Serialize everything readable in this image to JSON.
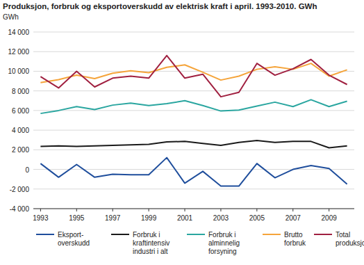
{
  "chart_data": {
    "type": "line",
    "title": "Produksjon, forbruk og eksportoverskudd av elektrisk kraft i april. 1993-2010. GWh",
    "y_label": "GWh",
    "x": [
      1993,
      1994,
      1995,
      1996,
      1997,
      1998,
      1999,
      2000,
      2001,
      2002,
      2003,
      2004,
      2005,
      2006,
      2007,
      2008,
      2009,
      2010
    ],
    "xlim": [
      1992.6,
      2010.4
    ],
    "xticks": [
      1993,
      1995,
      1997,
      1999,
      2001,
      2003,
      2005,
      2007,
      2009
    ],
    "ylim": [
      -4000,
      14000
    ],
    "yticks": [
      {
        "value": -4000,
        "label": "-4 000"
      },
      {
        "value": -2000,
        "label": "-2 000"
      },
      0,
      {
        "value": 2000,
        "label": "2 000"
      },
      {
        "value": 4000,
        "label": "4 000"
      },
      {
        "value": 6000,
        "label": "6 000"
      },
      {
        "value": 8000,
        "label": "8 000"
      },
      {
        "value": 10000,
        "label": "10 000"
      },
      {
        "value": 12000,
        "label": "12 000"
      },
      {
        "value": 14000,
        "label": "14 000"
      }
    ],
    "grid": true,
    "legend": "bottom",
    "series": [
      {
        "name": "Eksport-\noverskudd",
        "color": "#1f4e9c",
        "values": [
          600,
          -800,
          500,
          -800,
          -500,
          -550,
          -550,
          1200,
          -1400,
          -200,
          -1700,
          -1700,
          600,
          -850,
          0,
          400,
          100,
          -1500
        ]
      },
      {
        "name": "Forbruk i\nkraftintensiv\nindustri i alt",
        "color": "#1a1a1a",
        "values": [
          2350,
          2400,
          2350,
          2400,
          2450,
          2500,
          2550,
          2800,
          2850,
          2650,
          2450,
          2750,
          2950,
          2750,
          2850,
          2850,
          2200,
          2400
        ]
      },
      {
        "name": "Forbruk i\nalminnelig\nforsyning",
        "color": "#2aa6a0",
        "values": [
          5700,
          6000,
          6400,
          6100,
          6550,
          6750,
          6500,
          6700,
          7000,
          6500,
          5950,
          6050,
          6450,
          6850,
          6400,
          7100,
          6400,
          6950
        ]
      },
      {
        "name": "Brutto\nforbruk",
        "color": "#f5a43a",
        "values": [
          8850,
          9150,
          9600,
          9250,
          9800,
          10050,
          9850,
          10400,
          10650,
          9900,
          9100,
          9500,
          10200,
          10450,
          10200,
          10800,
          9500,
          10150
        ]
      },
      {
        "name": "Total\nproduksjon",
        "color": "#a02040",
        "values": [
          9450,
          8300,
          10000,
          8400,
          9300,
          9500,
          9300,
          11600,
          9300,
          9700,
          7400,
          7850,
          10800,
          9600,
          10250,
          11200,
          9600,
          8650
        ]
      }
    ]
  }
}
